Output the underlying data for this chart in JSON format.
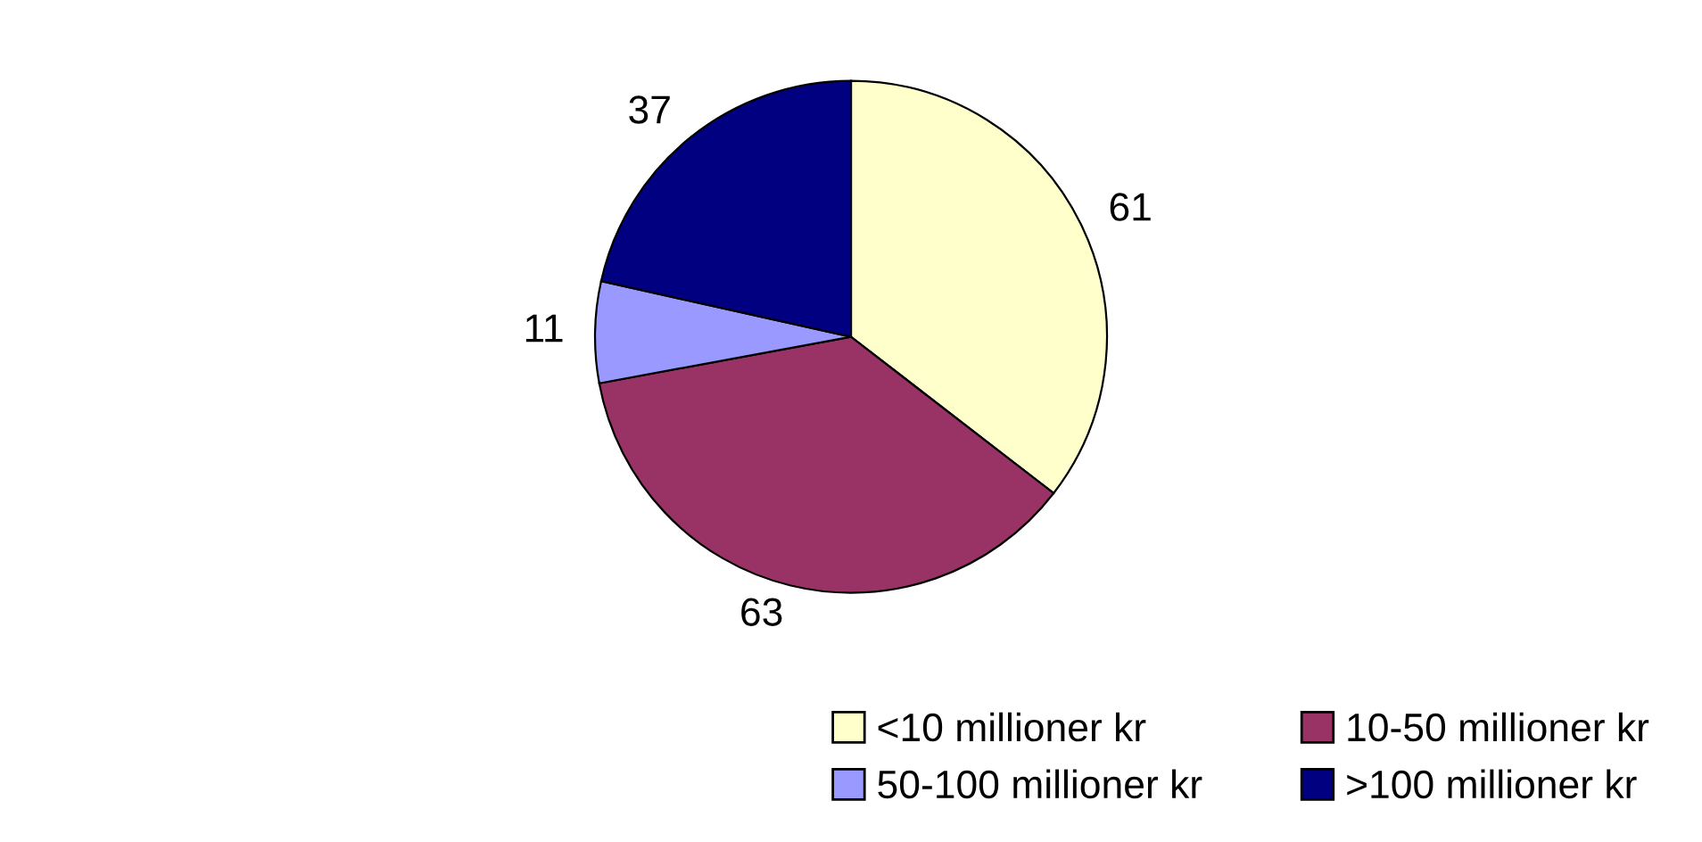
{
  "chart_data": {
    "type": "pie",
    "categories": [
      "<10 millioner kr",
      "10-50 millioner kr",
      "50-100 millioner kr",
      ">100 millioner kr"
    ],
    "values": [
      61,
      63,
      11,
      37
    ],
    "colors": [
      "#ffffcc",
      "#993366",
      "#9999ff",
      "#000080"
    ],
    "data_labels": true,
    "legend": "bottom"
  }
}
